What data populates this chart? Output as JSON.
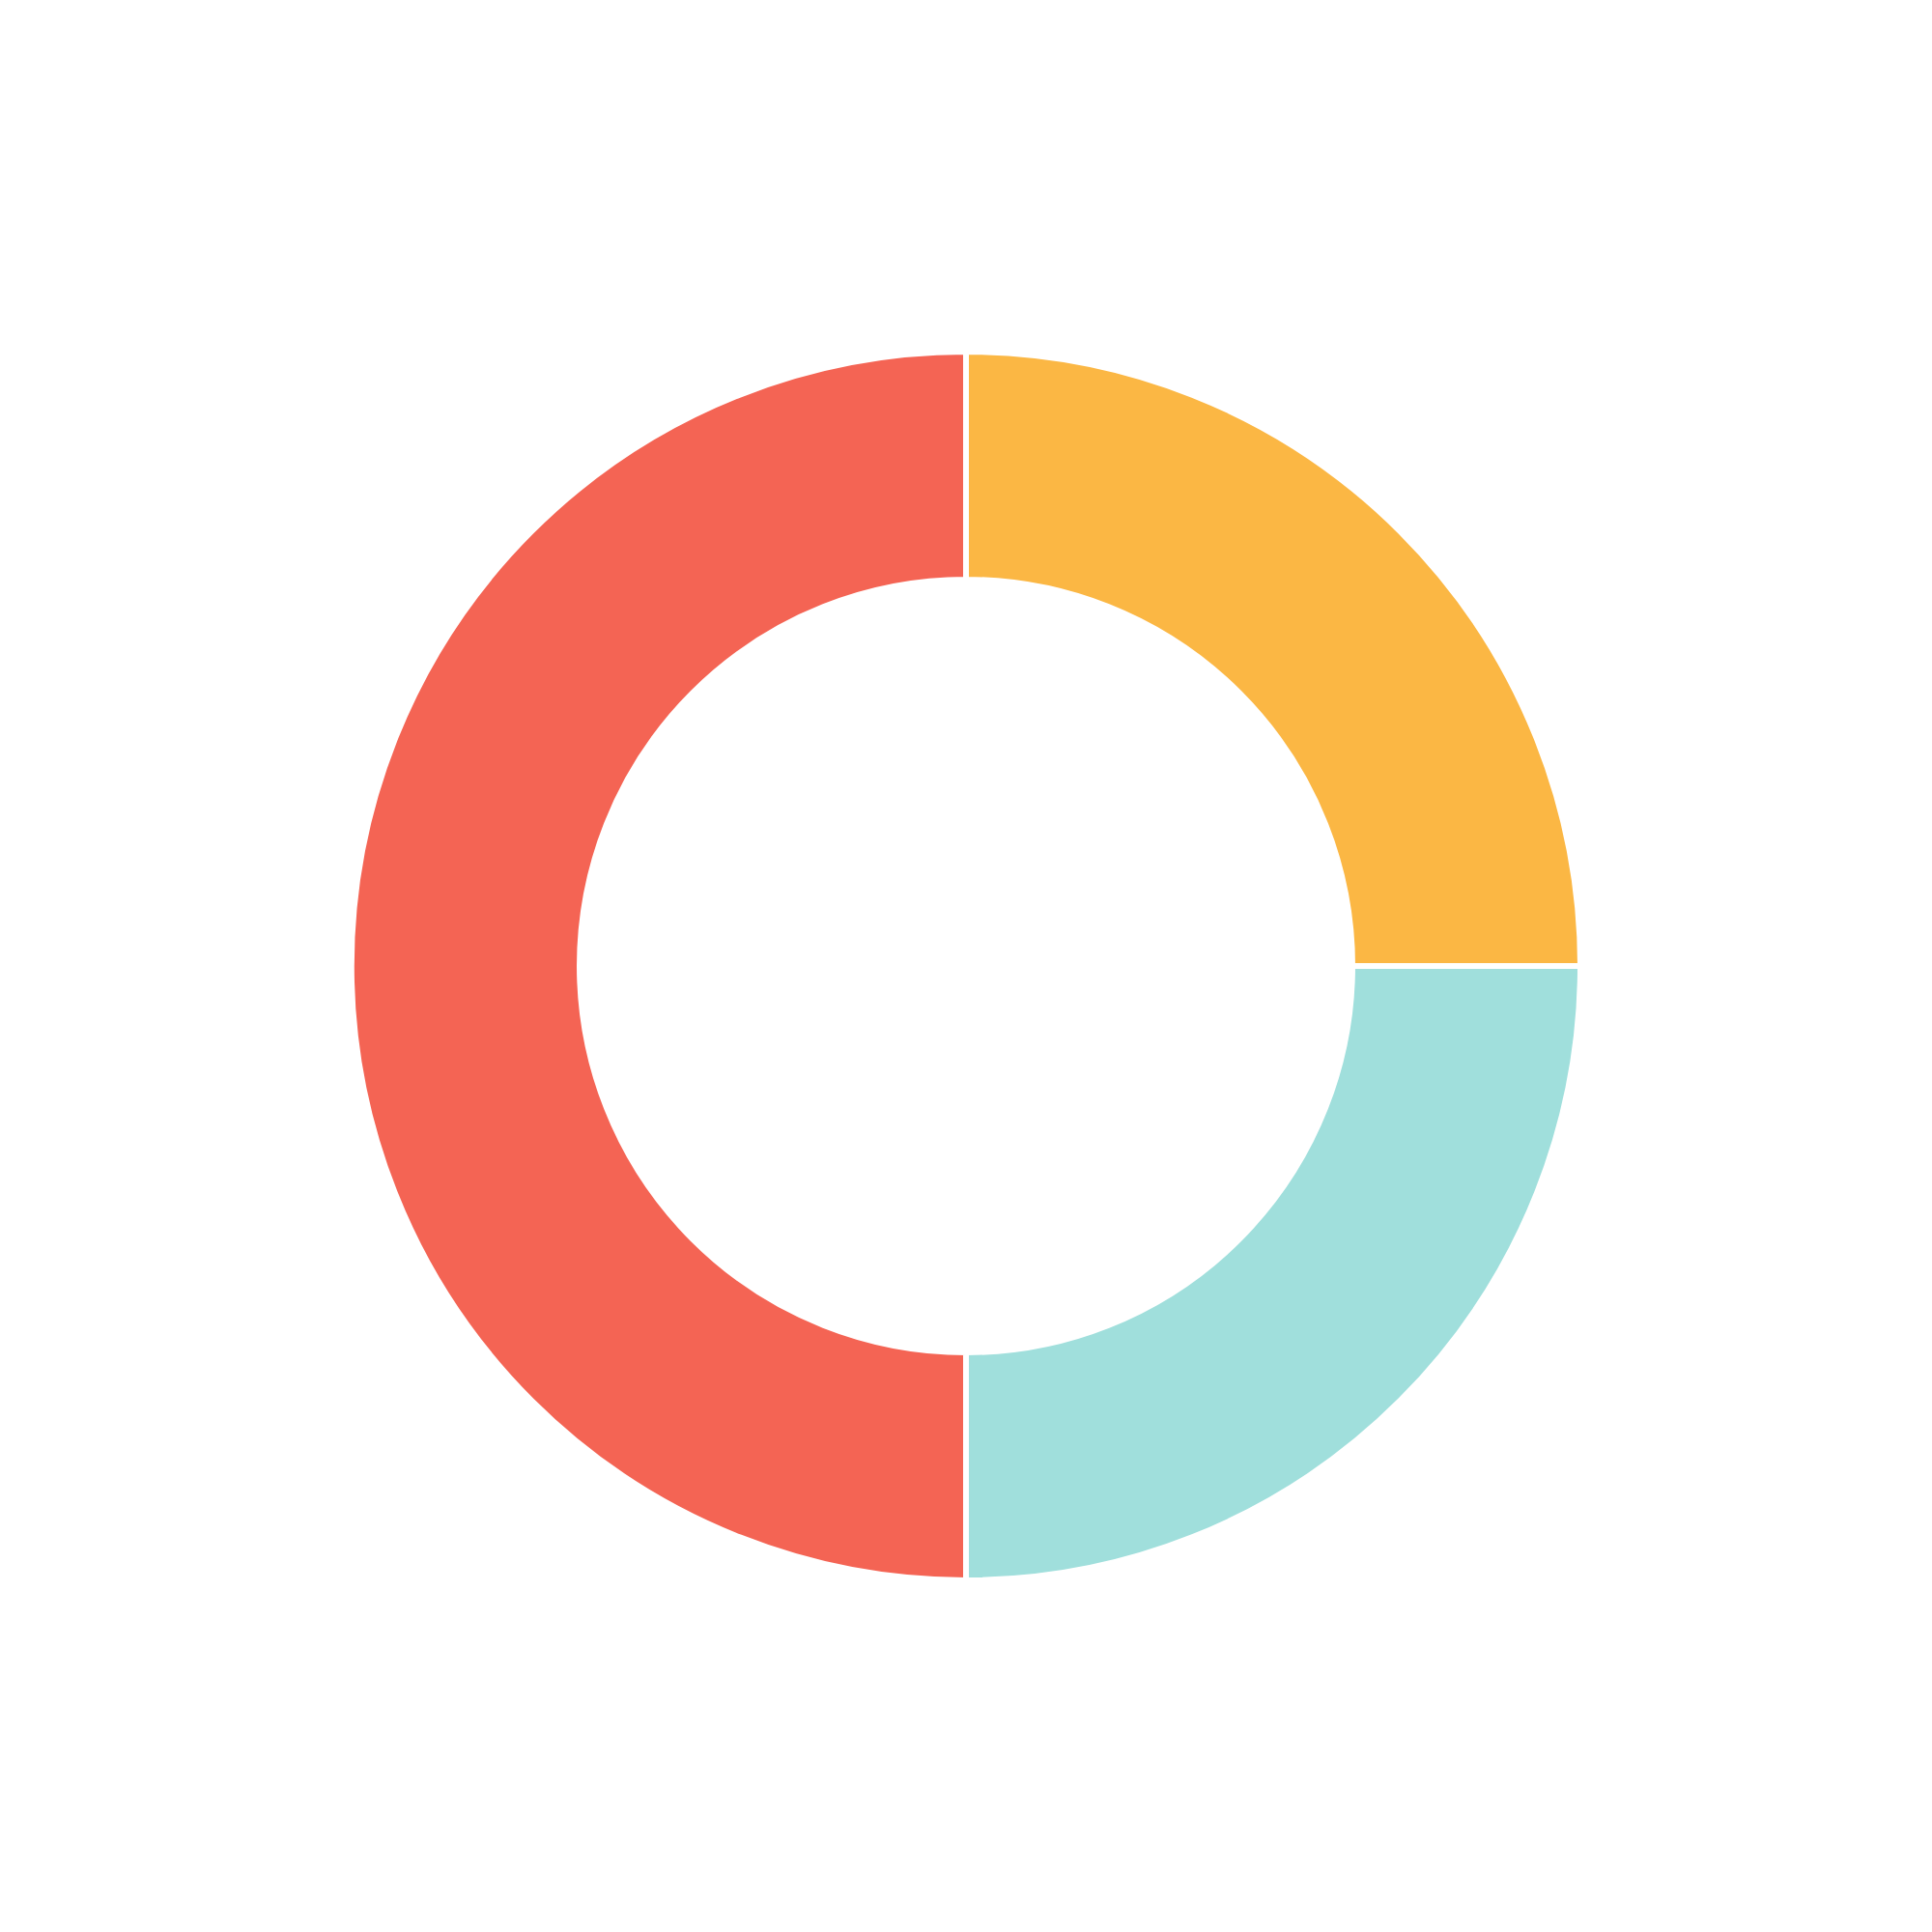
{
  "chart_data": {
    "type": "donut",
    "categories": [
      null,
      null,
      null
    ],
    "values": [
      25,
      25,
      50
    ],
    "colors": [
      "#fbb744",
      "#a0dfdc",
      "#f46454"
    ]
  }
}
